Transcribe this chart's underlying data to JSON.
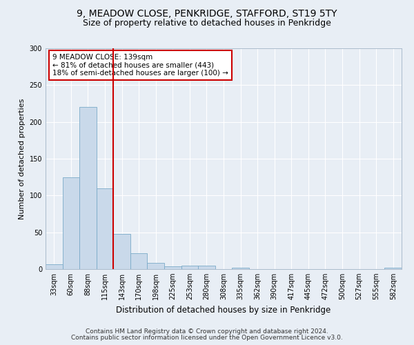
{
  "title_line1": "9, MEADOW CLOSE, PENKRIDGE, STAFFORD, ST19 5TY",
  "title_line2": "Size of property relative to detached houses in Penkridge",
  "xlabel": "Distribution of detached houses by size in Penkridge",
  "ylabel": "Number of detached properties",
  "footnote_line1": "Contains HM Land Registry data © Crown copyright and database right 2024.",
  "footnote_line2": "Contains public sector information licensed under the Open Government Licence v3.0.",
  "bar_labels": [
    "33sqm",
    "60sqm",
    "88sqm",
    "115sqm",
    "143sqm",
    "170sqm",
    "198sqm",
    "225sqm",
    "253sqm",
    "280sqm",
    "308sqm",
    "335sqm",
    "362sqm",
    "390sqm",
    "417sqm",
    "445sqm",
    "472sqm",
    "500sqm",
    "527sqm",
    "555sqm",
    "582sqm"
  ],
  "bar_values": [
    7,
    125,
    220,
    110,
    48,
    22,
    8,
    4,
    5,
    5,
    0,
    2,
    0,
    0,
    0,
    0,
    0,
    0,
    0,
    0,
    2
  ],
  "bar_color": "#c9d9ea",
  "bar_edge_color": "#7aaac8",
  "vline_color": "#cc0000",
  "annotation_line1": "9 MEADOW CLOSE: 139sqm",
  "annotation_line2": "← 81% of detached houses are smaller (443)",
  "annotation_line3": "18% of semi-detached houses are larger (100) →",
  "annotation_box_facecolor": "#ffffff",
  "annotation_box_edgecolor": "#cc0000",
  "ylim": [
    0,
    300
  ],
  "yticks": [
    0,
    50,
    100,
    150,
    200,
    250,
    300
  ],
  "plot_bg_color": "#e8eef5",
  "fig_bg_color": "#e8eef5",
  "grid_color": "#ffffff",
  "title1_fontsize": 10,
  "title2_fontsize": 9,
  "tick_fontsize": 7,
  "ylabel_fontsize": 8,
  "xlabel_fontsize": 8.5,
  "annotation_fontsize": 7.5,
  "footnote_fontsize": 6.5
}
